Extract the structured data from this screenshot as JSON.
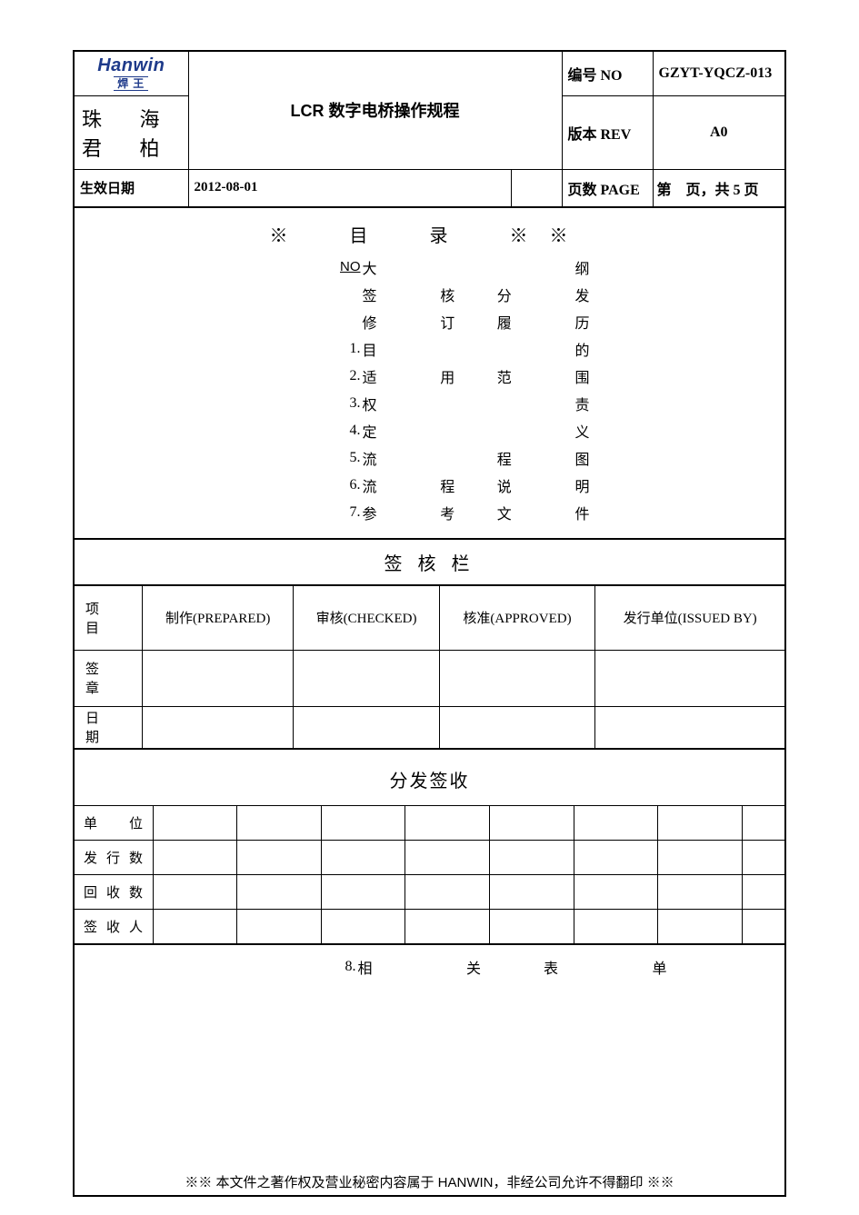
{
  "header": {
    "logo_main": "Hanwin",
    "logo_sub": "焊 王",
    "company": "珠 海 君 柏",
    "title": "LCR 数字电桥操作规程",
    "no_label": "编号 NO",
    "no_value": "GZYT-YQCZ-013",
    "rev_label": "版本 REV",
    "rev_value": "A0",
    "eff_label": "生效日期",
    "eff_value": "2012-08-01",
    "page_label": "页数 PAGE",
    "page_value": "第　页，共 5 页"
  },
  "toc": {
    "title": "※　目　录　※※",
    "no_head": "NO",
    "rows": [
      {
        "no": "",
        "cells": [
          "大",
          "",
          "",
          "纲"
        ]
      },
      {
        "no": "",
        "cells": [
          "签",
          "核",
          "分",
          "发"
        ]
      },
      {
        "no": "",
        "cells": [
          "修",
          "订",
          "履",
          "历"
        ]
      },
      {
        "no": "1.",
        "cells": [
          "目",
          "",
          "",
          "的"
        ]
      },
      {
        "no": "2.",
        "cells": [
          "适",
          "用",
          "范",
          "围"
        ]
      },
      {
        "no": "3.",
        "cells": [
          "权",
          "",
          "",
          "责"
        ]
      },
      {
        "no": "4.",
        "cells": [
          "定",
          "",
          "",
          "义"
        ]
      },
      {
        "no": "5.",
        "cells": [
          "流",
          "",
          "程",
          "图"
        ]
      },
      {
        "no": "6.",
        "cells": [
          "流",
          "程",
          "说",
          "明"
        ]
      },
      {
        "no": "7.",
        "cells": [
          "参",
          "考",
          "文",
          "件"
        ]
      }
    ],
    "extra_row": {
      "no": "8.",
      "cells": [
        "相",
        "关",
        "表",
        "单"
      ]
    }
  },
  "sign": {
    "title": "签 核 栏",
    "item_label": "项　目",
    "prepared": "制作(PREPARED)",
    "checked": "审核(CHECKED)",
    "approved": "核准(APPROVED)",
    "issued": "发行单位(ISSUED BY)",
    "sig_label": "签　章",
    "date_label": "日　期"
  },
  "dist": {
    "title": "分发签收",
    "rows": [
      "单　位",
      "发行数",
      "回收数",
      "签收人"
    ],
    "cols": 8
  },
  "footer_note": "※※ 本文件之著作权及营业秘密内容属于 HANWIN，非经公司允许不得翻印 ※※"
}
